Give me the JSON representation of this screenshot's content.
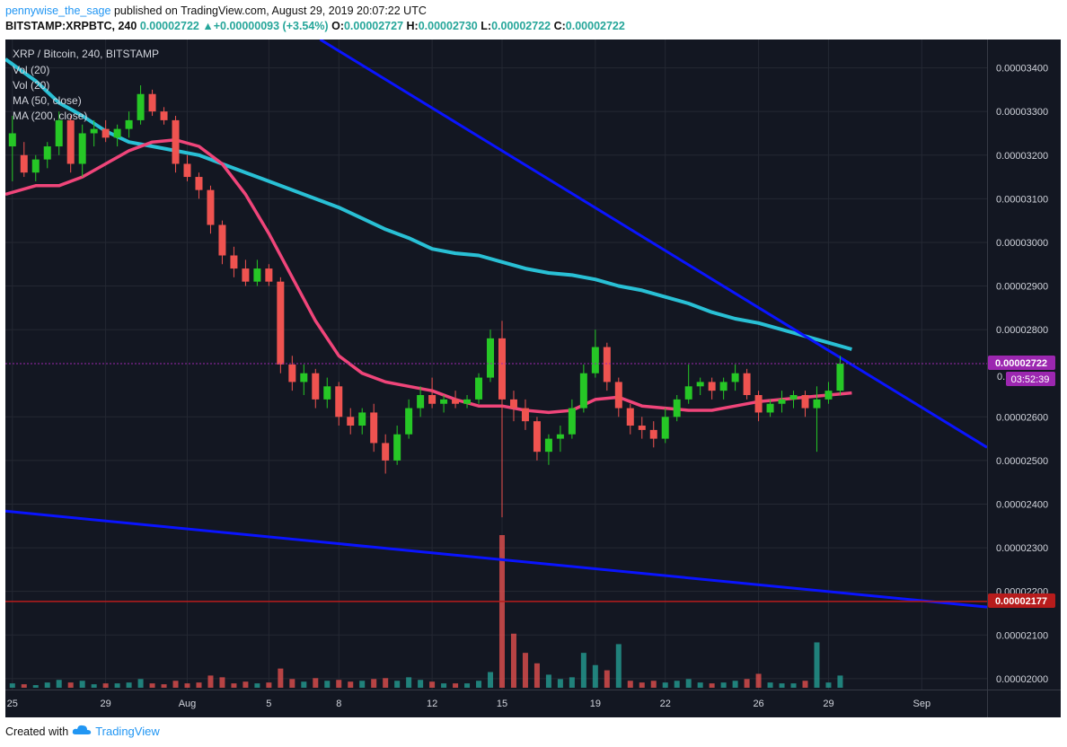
{
  "header": {
    "author": "pennywise_the_sage",
    "published": "published on TradingView.com, August 29, 2019 20:07:22 UTC",
    "symbol": "BITSTAMP:XRPBTC, 240",
    "price": "0.00002722",
    "change_arrow": "▲",
    "change": "+0.00000093 (+3.54%)",
    "o_label": "O:",
    "o": "0.00002727",
    "h_label": "H:",
    "h": "0.00002730",
    "l_label": "L:",
    "l": "0.00002722",
    "c_label": "C:",
    "c": "0.00002722"
  },
  "chart_data": {
    "type": "candlestick",
    "title": "XRP / Bitcoin, 240, BITSTAMP",
    "legend": [
      "Vol (20)",
      "Vol (20)",
      "MA (50, close)",
      "MA (200, close)"
    ],
    "y_ticks": [
      "0.00003400",
      "0.00003300",
      "0.00003200",
      "0.00003100",
      "0.00003000",
      "0.00002900",
      "0.00002800",
      "0.00002600",
      "0.00002500",
      "0.00002400",
      "0.00002300",
      "0.00002200",
      "0.00002100",
      "0.00002000"
    ],
    "y_tick_values": [
      3400,
      3300,
      3200,
      3100,
      3000,
      2900,
      2800,
      2600,
      2500,
      2400,
      2300,
      2200,
      2100,
      2000
    ],
    "y_unit_note": "values in 1e-8 BTC",
    "ylim": [
      1975,
      3465
    ],
    "x_ticks": [
      "25",
      "29",
      "Aug",
      "5",
      "8",
      "12",
      "15",
      "19",
      "22",
      "26",
      "29",
      "Sep"
    ],
    "x_tick_days": [
      0,
      4,
      7.5,
      11,
      14,
      18,
      21,
      25,
      28,
      32,
      35,
      39
    ],
    "xlim_days": [
      -0.3,
      41.8
    ],
    "last_price": {
      "label": "0.00002722",
      "value": 2722,
      "countdown_tag": "0.",
      "countdown": "03:52:39",
      "color": "#9c27b0"
    },
    "support_level": {
      "label": "0.00002177",
      "value": 2177,
      "color": "#b71c1c"
    },
    "trendlines": [
      {
        "name": "upper",
        "from": [
          13.2,
          3465
        ],
        "to": [
          41.8,
          2530
        ],
        "color": "#0a14ff"
      },
      {
        "name": "lower",
        "from": [
          -0.3,
          2384
        ],
        "to": [
          41.8,
          2164
        ],
        "color": "#0a14ff"
      }
    ],
    "ma50": {
      "color": "#f0457a",
      "points": [
        [
          -0.3,
          3110
        ],
        [
          1,
          3130
        ],
        [
          2,
          3130
        ],
        [
          3,
          3150
        ],
        [
          4,
          3180
        ],
        [
          5,
          3210
        ],
        [
          6,
          3230
        ],
        [
          7,
          3235
        ],
        [
          8,
          3220
        ],
        [
          9,
          3180
        ],
        [
          10,
          3110
        ],
        [
          11,
          3020
        ],
        [
          12,
          2920
        ],
        [
          13,
          2820
        ],
        [
          14,
          2740
        ],
        [
          15,
          2700
        ],
        [
          16,
          2680
        ],
        [
          17,
          2670
        ],
        [
          18,
          2660
        ],
        [
          19,
          2640
        ],
        [
          20,
          2625
        ],
        [
          21,
          2625
        ],
        [
          22,
          2615
        ],
        [
          23,
          2610
        ],
        [
          24,
          2615
        ],
        [
          25,
          2640
        ],
        [
          26,
          2645
        ],
        [
          27,
          2625
        ],
        [
          28,
          2620
        ],
        [
          29,
          2615
        ],
        [
          30,
          2615
        ],
        [
          31,
          2625
        ],
        [
          32,
          2635
        ],
        [
          33,
          2640
        ],
        [
          34,
          2645
        ],
        [
          35,
          2650
        ],
        [
          36,
          2655
        ]
      ]
    },
    "ma200": {
      "color": "#29c0d5",
      "points": [
        [
          -0.3,
          3420
        ],
        [
          1,
          3370
        ],
        [
          2,
          3320
        ],
        [
          3,
          3290
        ],
        [
          4,
          3255
        ],
        [
          5,
          3230
        ],
        [
          6,
          3220
        ],
        [
          7,
          3210
        ],
        [
          8,
          3200
        ],
        [
          9,
          3180
        ],
        [
          10,
          3160
        ],
        [
          11,
          3140
        ],
        [
          12,
          3120
        ],
        [
          13,
          3100
        ],
        [
          14,
          3080
        ],
        [
          15,
          3055
        ],
        [
          16,
          3030
        ],
        [
          17,
          3010
        ],
        [
          18,
          2985
        ],
        [
          19,
          2975
        ],
        [
          20,
          2970
        ],
        [
          21,
          2955
        ],
        [
          22,
          2940
        ],
        [
          23,
          2930
        ],
        [
          24,
          2925
        ],
        [
          25,
          2915
        ],
        [
          26,
          2900
        ],
        [
          27,
          2890
        ],
        [
          28,
          2875
        ],
        [
          29,
          2860
        ],
        [
          30,
          2840
        ],
        [
          31,
          2825
        ],
        [
          32,
          2815
        ],
        [
          33,
          2800
        ],
        [
          34,
          2785
        ],
        [
          35,
          2770
        ],
        [
          36,
          2755
        ]
      ]
    },
    "candles": [
      {
        "t": 0,
        "o": 3220,
        "h": 3290,
        "l": 3140,
        "c": 3250
      },
      {
        "t": 0.5,
        "o": 3200,
        "h": 3230,
        "l": 3150,
        "c": 3160
      },
      {
        "t": 1,
        "o": 3160,
        "h": 3200,
        "l": 3140,
        "c": 3190
      },
      {
        "t": 1.5,
        "o": 3190,
        "h": 3230,
        "l": 3170,
        "c": 3220
      },
      {
        "t": 2,
        "o": 3220,
        "h": 3300,
        "l": 3200,
        "c": 3280
      },
      {
        "t": 2.5,
        "o": 3280,
        "h": 3290,
        "l": 3160,
        "c": 3180
      },
      {
        "t": 3,
        "o": 3180,
        "h": 3270,
        "l": 3150,
        "c": 3250
      },
      {
        "t": 3.5,
        "o": 3250,
        "h": 3280,
        "l": 3220,
        "c": 3260
      },
      {
        "t": 4,
        "o": 3260,
        "h": 3280,
        "l": 3230,
        "c": 3240
      },
      {
        "t": 4.5,
        "o": 3240,
        "h": 3270,
        "l": 3220,
        "c": 3260
      },
      {
        "t": 5,
        "o": 3260,
        "h": 3300,
        "l": 3240,
        "c": 3280
      },
      {
        "t": 5.5,
        "o": 3280,
        "h": 3360,
        "l": 3270,
        "c": 3340
      },
      {
        "t": 6,
        "o": 3340,
        "h": 3350,
        "l": 3290,
        "c": 3300
      },
      {
        "t": 6.5,
        "o": 3300,
        "h": 3310,
        "l": 3270,
        "c": 3280
      },
      {
        "t": 7,
        "o": 3280,
        "h": 3290,
        "l": 3160,
        "c": 3180
      },
      {
        "t": 7.5,
        "o": 3180,
        "h": 3200,
        "l": 3140,
        "c": 3150
      },
      {
        "t": 8,
        "o": 3150,
        "h": 3160,
        "l": 3100,
        "c": 3120
      },
      {
        "t": 8.5,
        "o": 3120,
        "h": 3130,
        "l": 3020,
        "c": 3040
      },
      {
        "t": 9,
        "o": 3040,
        "h": 3050,
        "l": 2950,
        "c": 2970
      },
      {
        "t": 9.5,
        "o": 2970,
        "h": 2990,
        "l": 2920,
        "c": 2940
      },
      {
        "t": 10,
        "o": 2940,
        "h": 2960,
        "l": 2900,
        "c": 2910
      },
      {
        "t": 10.5,
        "o": 2910,
        "h": 2960,
        "l": 2900,
        "c": 2940
      },
      {
        "t": 11,
        "o": 2940,
        "h": 2950,
        "l": 2900,
        "c": 2910
      },
      {
        "t": 11.5,
        "o": 2910,
        "h": 2920,
        "l": 2700,
        "c": 2720
      },
      {
        "t": 12,
        "o": 2720,
        "h": 2740,
        "l": 2660,
        "c": 2680
      },
      {
        "t": 12.5,
        "o": 2680,
        "h": 2720,
        "l": 2650,
        "c": 2700
      },
      {
        "t": 13,
        "o": 2700,
        "h": 2710,
        "l": 2620,
        "c": 2640
      },
      {
        "t": 13.5,
        "o": 2640,
        "h": 2690,
        "l": 2620,
        "c": 2670
      },
      {
        "t": 14,
        "o": 2670,
        "h": 2680,
        "l": 2580,
        "c": 2600
      },
      {
        "t": 14.5,
        "o": 2600,
        "h": 2620,
        "l": 2560,
        "c": 2580
      },
      {
        "t": 15,
        "o": 2580,
        "h": 2620,
        "l": 2560,
        "c": 2610
      },
      {
        "t": 15.5,
        "o": 2610,
        "h": 2630,
        "l": 2520,
        "c": 2540
      },
      {
        "t": 16,
        "o": 2540,
        "h": 2560,
        "l": 2470,
        "c": 2500
      },
      {
        "t": 16.5,
        "o": 2500,
        "h": 2580,
        "l": 2490,
        "c": 2560
      },
      {
        "t": 17,
        "o": 2560,
        "h": 2640,
        "l": 2550,
        "c": 2620
      },
      {
        "t": 17.5,
        "o": 2620,
        "h": 2670,
        "l": 2600,
        "c": 2650
      },
      {
        "t": 18,
        "o": 2650,
        "h": 2690,
        "l": 2620,
        "c": 2630
      },
      {
        "t": 18.5,
        "o": 2630,
        "h": 2650,
        "l": 2610,
        "c": 2640
      },
      {
        "t": 19,
        "o": 2640,
        "h": 2660,
        "l": 2620,
        "c": 2630
      },
      {
        "t": 19.5,
        "o": 2630,
        "h": 2650,
        "l": 2620,
        "c": 2640
      },
      {
        "t": 20,
        "o": 2640,
        "h": 2700,
        "l": 2630,
        "c": 2690
      },
      {
        "t": 20.5,
        "o": 2690,
        "h": 2800,
        "l": 2680,
        "c": 2780
      },
      {
        "t": 21,
        "o": 2780,
        "h": 2820,
        "l": 2370,
        "c": 2640
      },
      {
        "t": 21.5,
        "o": 2640,
        "h": 2660,
        "l": 2590,
        "c": 2620
      },
      {
        "t": 22,
        "o": 2620,
        "h": 2640,
        "l": 2570,
        "c": 2590
      },
      {
        "t": 22.5,
        "o": 2590,
        "h": 2600,
        "l": 2500,
        "c": 2520
      },
      {
        "t": 23,
        "o": 2520,
        "h": 2560,
        "l": 2490,
        "c": 2550
      },
      {
        "t": 23.5,
        "o": 2550,
        "h": 2580,
        "l": 2520,
        "c": 2560
      },
      {
        "t": 24,
        "o": 2560,
        "h": 2640,
        "l": 2550,
        "c": 2620
      },
      {
        "t": 24.5,
        "o": 2620,
        "h": 2720,
        "l": 2610,
        "c": 2700
      },
      {
        "t": 25,
        "o": 2700,
        "h": 2800,
        "l": 2690,
        "c": 2760
      },
      {
        "t": 25.5,
        "o": 2760,
        "h": 2770,
        "l": 2660,
        "c": 2680
      },
      {
        "t": 26,
        "o": 2680,
        "h": 2690,
        "l": 2600,
        "c": 2620
      },
      {
        "t": 26.5,
        "o": 2620,
        "h": 2630,
        "l": 2560,
        "c": 2580
      },
      {
        "t": 27,
        "o": 2580,
        "h": 2600,
        "l": 2550,
        "c": 2570
      },
      {
        "t": 27.5,
        "o": 2570,
        "h": 2590,
        "l": 2530,
        "c": 2550
      },
      {
        "t": 28,
        "o": 2550,
        "h": 2620,
        "l": 2540,
        "c": 2600
      },
      {
        "t": 28.5,
        "o": 2600,
        "h": 2650,
        "l": 2590,
        "c": 2640
      },
      {
        "t": 29,
        "o": 2640,
        "h": 2720,
        "l": 2630,
        "c": 2670
      },
      {
        "t": 29.5,
        "o": 2670,
        "h": 2690,
        "l": 2650,
        "c": 2680
      },
      {
        "t": 30,
        "o": 2680,
        "h": 2690,
        "l": 2640,
        "c": 2660
      },
      {
        "t": 30.5,
        "o": 2660,
        "h": 2690,
        "l": 2640,
        "c": 2680
      },
      {
        "t": 31,
        "o": 2680,
        "h": 2720,
        "l": 2660,
        "c": 2700
      },
      {
        "t": 31.5,
        "o": 2700,
        "h": 2710,
        "l": 2640,
        "c": 2650
      },
      {
        "t": 32,
        "o": 2650,
        "h": 2660,
        "l": 2590,
        "c": 2610
      },
      {
        "t": 32.5,
        "o": 2610,
        "h": 2640,
        "l": 2600,
        "c": 2630
      },
      {
        "t": 33,
        "o": 2630,
        "h": 2660,
        "l": 2610,
        "c": 2640
      },
      {
        "t": 33.5,
        "o": 2640,
        "h": 2660,
        "l": 2620,
        "c": 2650
      },
      {
        "t": 34,
        "o": 2650,
        "h": 2660,
        "l": 2600,
        "c": 2620
      },
      {
        "t": 34.5,
        "o": 2620,
        "h": 2670,
        "l": 2520,
        "c": 2640
      },
      {
        "t": 35,
        "o": 2640,
        "h": 2680,
        "l": 2630,
        "c": 2660
      },
      {
        "t": 35.5,
        "o": 2660,
        "h": 2740,
        "l": 2650,
        "c": 2722
      }
    ],
    "volume": {
      "up_color": "#26a69a",
      "down_color": "#ef5350",
      "bars": [
        {
          "t": 0,
          "v": 5,
          "up": 1
        },
        {
          "t": 0.5,
          "v": 4,
          "up": 0
        },
        {
          "t": 1,
          "v": 3,
          "up": 1
        },
        {
          "t": 1.5,
          "v": 6,
          "up": 1
        },
        {
          "t": 2,
          "v": 9,
          "up": 1
        },
        {
          "t": 2.5,
          "v": 6,
          "up": 0
        },
        {
          "t": 3,
          "v": 8,
          "up": 1
        },
        {
          "t": 3.5,
          "v": 4,
          "up": 1
        },
        {
          "t": 4,
          "v": 5,
          "up": 0
        },
        {
          "t": 4.5,
          "v": 5,
          "up": 1
        },
        {
          "t": 5,
          "v": 6,
          "up": 1
        },
        {
          "t": 5.5,
          "v": 10,
          "up": 1
        },
        {
          "t": 6,
          "v": 5,
          "up": 0
        },
        {
          "t": 6.5,
          "v": 4,
          "up": 0
        },
        {
          "t": 7,
          "v": 8,
          "up": 0
        },
        {
          "t": 7.5,
          "v": 5,
          "up": 0
        },
        {
          "t": 8,
          "v": 6,
          "up": 0
        },
        {
          "t": 8.5,
          "v": 14,
          "up": 0
        },
        {
          "t": 9,
          "v": 12,
          "up": 0
        },
        {
          "t": 9.5,
          "v": 5,
          "up": 0
        },
        {
          "t": 10,
          "v": 7,
          "up": 0
        },
        {
          "t": 10.5,
          "v": 5,
          "up": 1
        },
        {
          "t": 11,
          "v": 6,
          "up": 0
        },
        {
          "t": 11.5,
          "v": 22,
          "up": 0
        },
        {
          "t": 12,
          "v": 10,
          "up": 0
        },
        {
          "t": 12.5,
          "v": 7,
          "up": 1
        },
        {
          "t": 13,
          "v": 11,
          "up": 0
        },
        {
          "t": 13.5,
          "v": 8,
          "up": 1
        },
        {
          "t": 14,
          "v": 9,
          "up": 0
        },
        {
          "t": 14.5,
          "v": 7,
          "up": 0
        },
        {
          "t": 15,
          "v": 8,
          "up": 1
        },
        {
          "t": 15.5,
          "v": 10,
          "up": 0
        },
        {
          "t": 16,
          "v": 11,
          "up": 0
        },
        {
          "t": 16.5,
          "v": 8,
          "up": 1
        },
        {
          "t": 17,
          "v": 12,
          "up": 1
        },
        {
          "t": 17.5,
          "v": 9,
          "up": 1
        },
        {
          "t": 18,
          "v": 7,
          "up": 0
        },
        {
          "t": 18.5,
          "v": 5,
          "up": 1
        },
        {
          "t": 19,
          "v": 5,
          "up": 0
        },
        {
          "t": 19.5,
          "v": 5,
          "up": 1
        },
        {
          "t": 20,
          "v": 8,
          "up": 1
        },
        {
          "t": 20.5,
          "v": 18,
          "up": 1
        },
        {
          "t": 21,
          "v": 175,
          "up": 0
        },
        {
          "t": 21.5,
          "v": 62,
          "up": 0
        },
        {
          "t": 22,
          "v": 40,
          "up": 0
        },
        {
          "t": 22.5,
          "v": 28,
          "up": 0
        },
        {
          "t": 23,
          "v": 15,
          "up": 1
        },
        {
          "t": 23.5,
          "v": 10,
          "up": 1
        },
        {
          "t": 24,
          "v": 12,
          "up": 1
        },
        {
          "t": 24.5,
          "v": 40,
          "up": 1
        },
        {
          "t": 25,
          "v": 26,
          "up": 1
        },
        {
          "t": 25.5,
          "v": 20,
          "up": 0
        },
        {
          "t": 26,
          "v": 50,
          "up": 1
        },
        {
          "t": 26.5,
          "v": 8,
          "up": 0
        },
        {
          "t": 27,
          "v": 6,
          "up": 0
        },
        {
          "t": 27.5,
          "v": 8,
          "up": 0
        },
        {
          "t": 28,
          "v": 6,
          "up": 1
        },
        {
          "t": 28.5,
          "v": 8,
          "up": 1
        },
        {
          "t": 29,
          "v": 10,
          "up": 1
        },
        {
          "t": 29.5,
          "v": 6,
          "up": 1
        },
        {
          "t": 30,
          "v": 5,
          "up": 0
        },
        {
          "t": 30.5,
          "v": 6,
          "up": 1
        },
        {
          "t": 31,
          "v": 8,
          "up": 1
        },
        {
          "t": 31.5,
          "v": 10,
          "up": 0
        },
        {
          "t": 32,
          "v": 16,
          "up": 0
        },
        {
          "t": 32.5,
          "v": 6,
          "up": 1
        },
        {
          "t": 33,
          "v": 5,
          "up": 1
        },
        {
          "t": 33.5,
          "v": 5,
          "up": 1
        },
        {
          "t": 34,
          "v": 8,
          "up": 0
        },
        {
          "t": 34.5,
          "v": 52,
          "up": 1
        },
        {
          "t": 35,
          "v": 6,
          "up": 1
        },
        {
          "t": 35.5,
          "v": 14,
          "up": 1
        }
      ]
    },
    "grid": true,
    "background": "#131722"
  },
  "footer": {
    "created_with": "Created with",
    "brand": "TradingView"
  }
}
